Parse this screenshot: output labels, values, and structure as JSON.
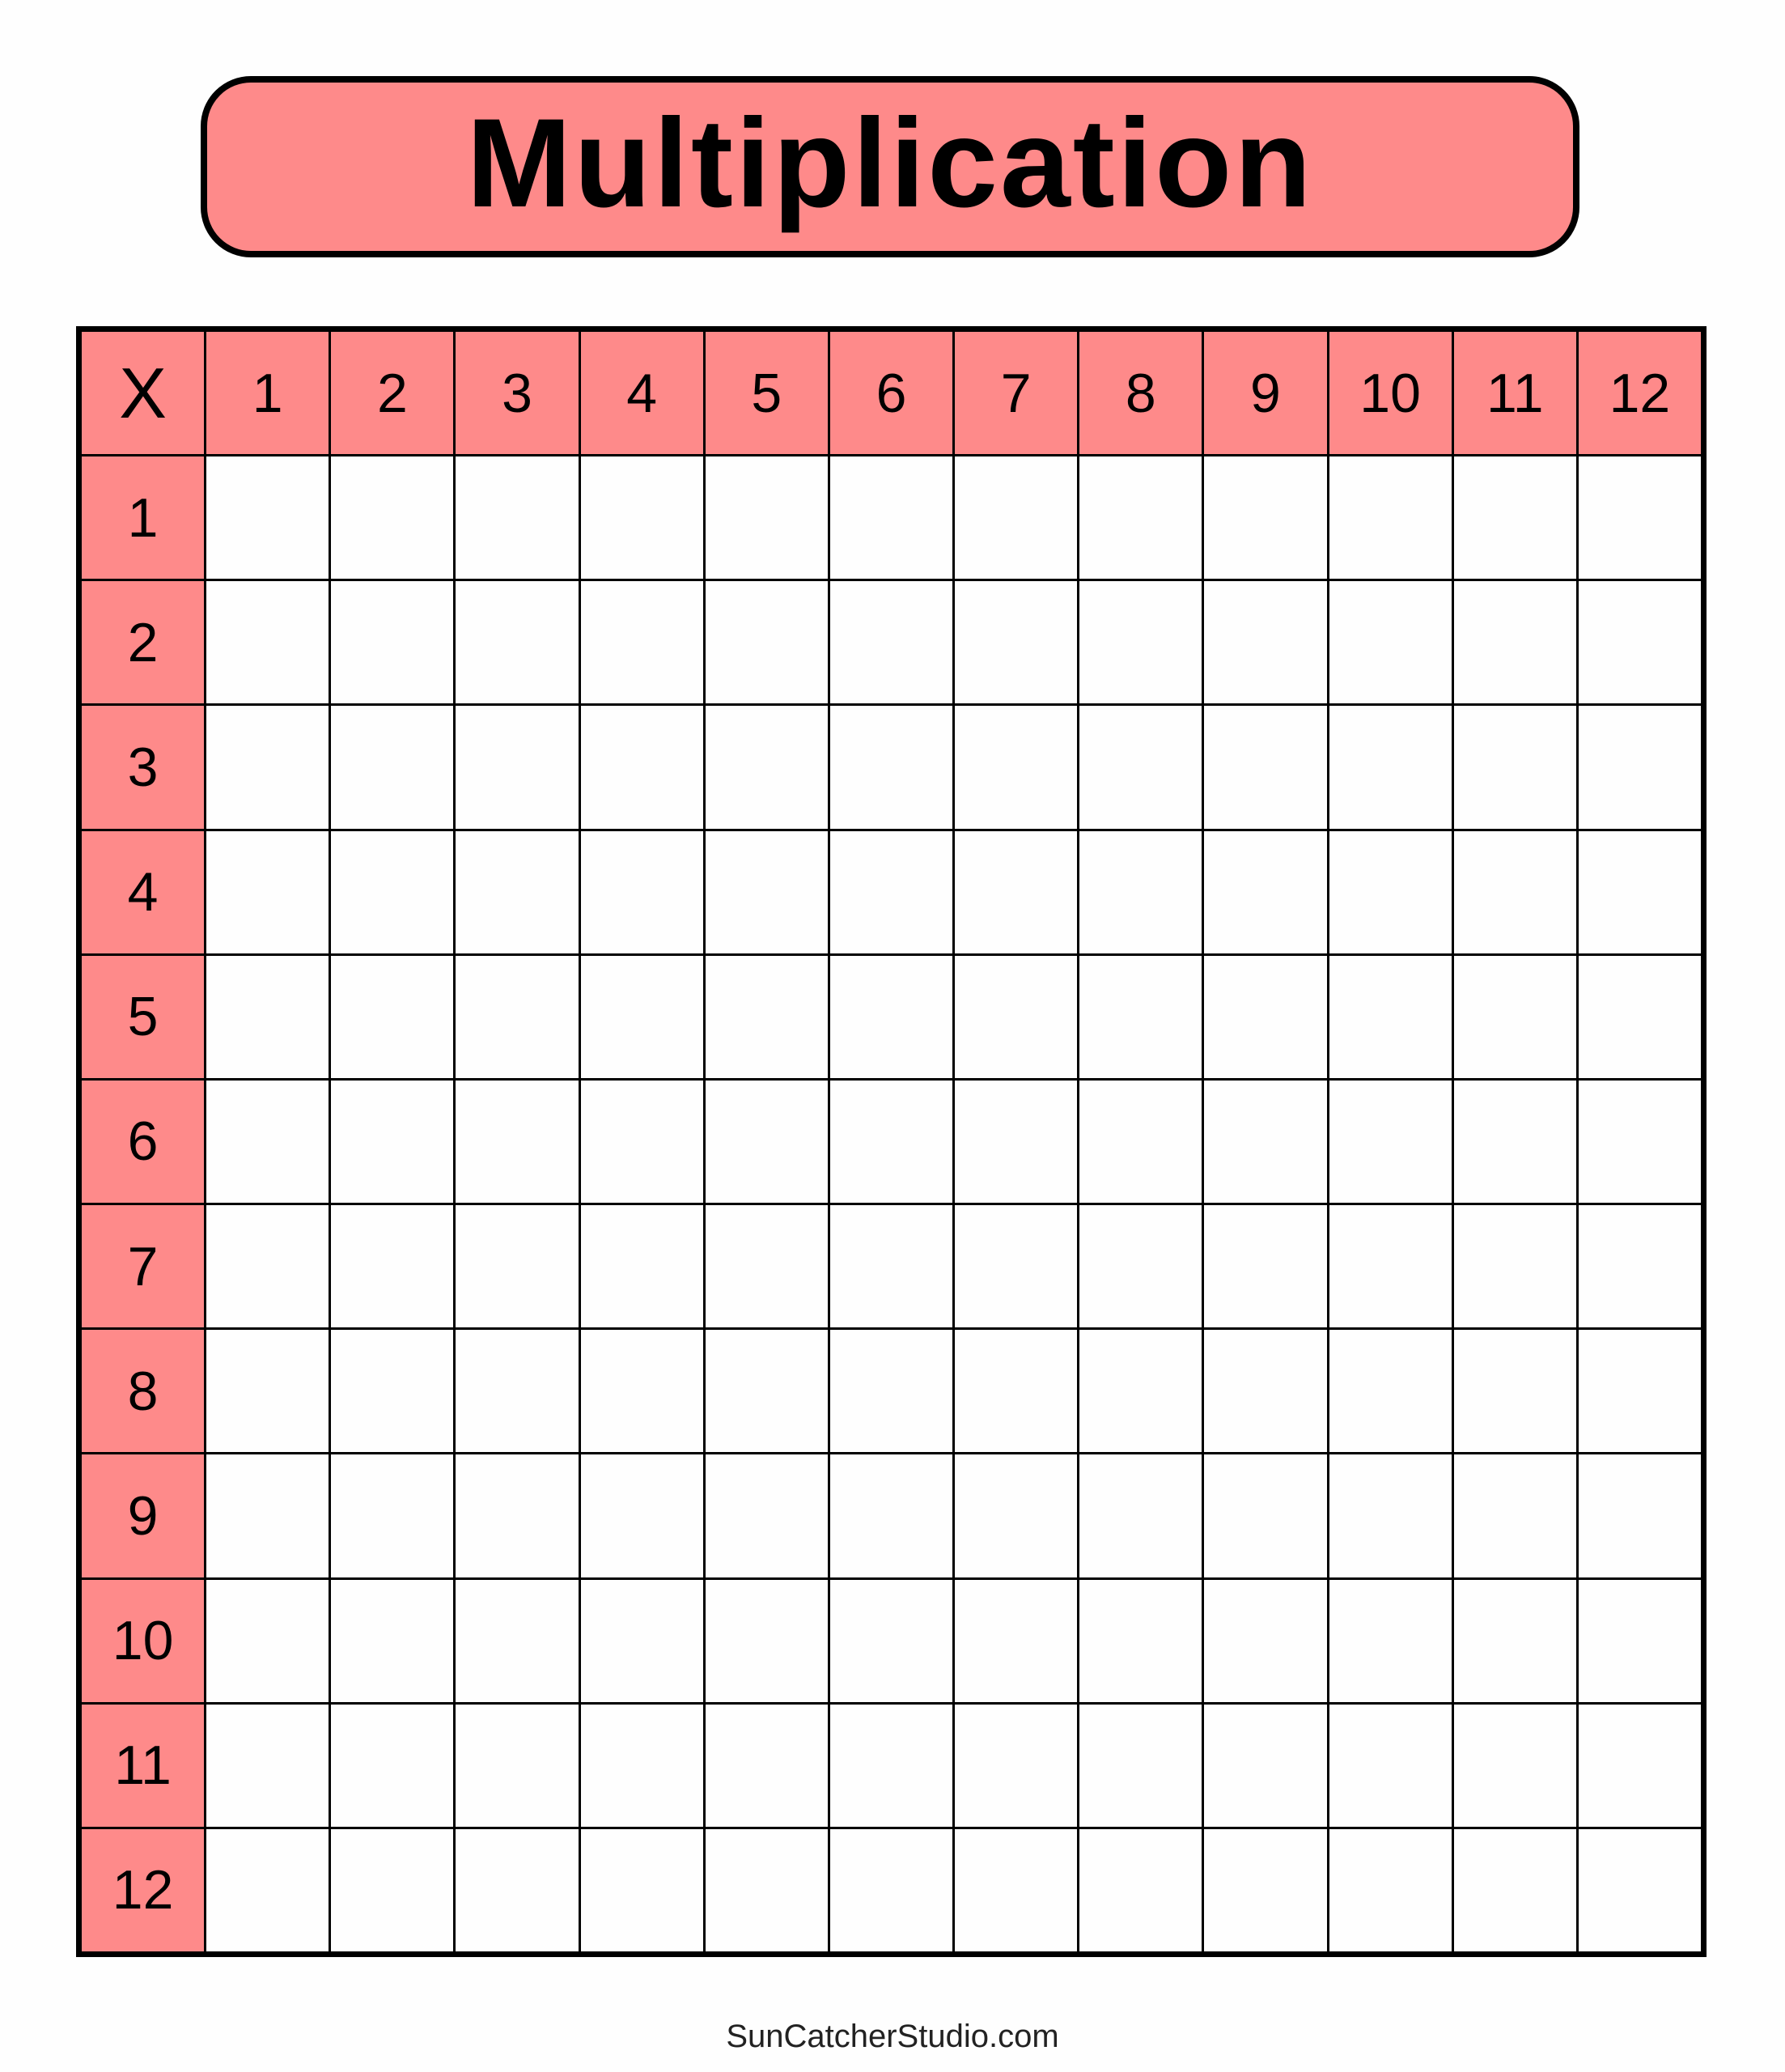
{
  "title": "Multiplication",
  "corner_label": "X",
  "column_headers": [
    "1",
    "2",
    "3",
    "4",
    "5",
    "6",
    "7",
    "8",
    "9",
    "10",
    "11",
    "12"
  ],
  "row_headers": [
    "1",
    "2",
    "3",
    "4",
    "5",
    "6",
    "7",
    "8",
    "9",
    "10",
    "11",
    "12"
  ],
  "footer": "SunCatcherStudio.com",
  "colors": {
    "header_fill": "#fe8a8a",
    "lines": "#000000"
  }
}
